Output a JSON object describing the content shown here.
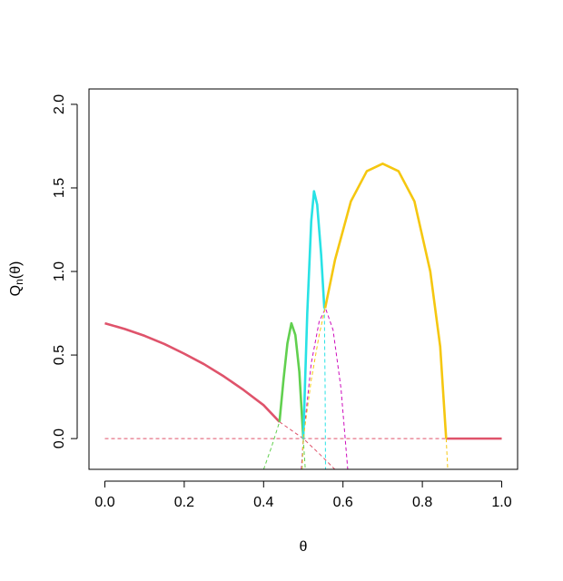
{
  "chart_data": {
    "type": "line",
    "xlabel": "θ",
    "ylabel": {
      "main": "Q",
      "sub": "n",
      "rest": "(θ)"
    },
    "xlim": [
      -0.04,
      1.04
    ],
    "ylim": [
      -0.184,
      2.092
    ],
    "xticks": [
      {
        "value": 0,
        "label": "0.0"
      },
      0.2,
      0.4,
      0.6,
      0.8,
      {
        "value": 1,
        "label": "1.0"
      }
    ],
    "yticks": [
      {
        "value": 0,
        "label": "0.0"
      },
      0.5,
      {
        "value": 1,
        "label": "1.0"
      },
      1.5,
      {
        "value": 2,
        "label": "2.0"
      }
    ],
    "series": [
      {
        "color": "#DF536B",
        "linestyle": "solid",
        "x": [
          0,
          0.05,
          0.1,
          0.15,
          0.2,
          0.25,
          0.3,
          0.35,
          0.4,
          0.44
        ],
        "values": [
          0.69,
          0.656,
          0.615,
          0.566,
          0.508,
          0.445,
          0.372,
          0.29,
          0.2,
          0.1
        ]
      },
      {
        "color": "#DF536B",
        "linestyle": "dashed",
        "x": [
          0.44,
          0.47,
          0.5,
          0.54,
          0.58
        ],
        "values": [
          0.1,
          0.05,
          0,
          -0.09,
          -0.185
        ]
      },
      {
        "color": "#DF536B",
        "linestyle": "dashed",
        "x": [
          0,
          1
        ],
        "values": [
          0,
          0
        ]
      },
      {
        "color": "#DF536B",
        "linestyle": "solid",
        "x": [
          0.86,
          1
        ],
        "values": [
          0,
          0
        ]
      },
      {
        "color": "#61D04F",
        "linestyle": "dashed",
        "x": [
          0.4,
          0.42,
          0.44
        ],
        "values": [
          -0.185,
          -0.05,
          0.1
        ]
      },
      {
        "color": "#61D04F",
        "linestyle": "solid",
        "x": [
          0.44,
          0.45,
          0.46,
          0.47,
          0.48,
          0.49,
          0.5
        ],
        "values": [
          0.1,
          0.35,
          0.57,
          0.69,
          0.62,
          0.4,
          0
        ]
      },
      {
        "color": "#61D04F",
        "linestyle": "dashed",
        "x": [
          0.5,
          0.505
        ],
        "values": [
          0,
          -0.185
        ]
      },
      {
        "color": "#CD0BBC",
        "linestyle": "dashed",
        "x": [
          0.495,
          0.5,
          0.52,
          0.54,
          0.556,
          0.575,
          0.595,
          0.612
        ],
        "values": [
          -0.185,
          0,
          0.45,
          0.7,
          0.78,
          0.65,
          0.3,
          -0.185
        ]
      },
      {
        "color": "#28E2E5",
        "linestyle": "dashed",
        "x": [
          0.497,
          0.5
        ],
        "values": [
          -0.185,
          0
        ]
      },
      {
        "color": "#28E2E5",
        "linestyle": "solid",
        "x": [
          0.5,
          0.51,
          0.52,
          0.527,
          0.535,
          0.545,
          0.553
        ],
        "values": [
          0,
          0.75,
          1.3,
          1.48,
          1.4,
          1.1,
          0.78
        ]
      },
      {
        "color": "#28E2E5",
        "linestyle": "dashed",
        "x": [
          0.553,
          0.555,
          0.556
        ],
        "values": [
          0.78,
          0.3,
          -0.185
        ]
      },
      {
        "color": "#F5C710",
        "linestyle": "dashed",
        "x": [
          0.497,
          0.5,
          0.52,
          0.54,
          0.555
        ],
        "values": [
          -0.185,
          0,
          0.35,
          0.62,
          0.78
        ]
      },
      {
        "color": "#F5C710",
        "linestyle": "solid",
        "x": [
          0.555,
          0.58,
          0.62,
          0.66,
          0.7,
          0.74,
          0.78,
          0.82,
          0.845,
          0.86
        ],
        "values": [
          0.78,
          1.07,
          1.42,
          1.6,
          1.645,
          1.6,
          1.42,
          1.0,
          0.55,
          0
        ]
      },
      {
        "color": "#F5C710",
        "linestyle": "dashed",
        "x": [
          0.86,
          0.864
        ],
        "values": [
          0,
          -0.185
        ]
      }
    ]
  }
}
